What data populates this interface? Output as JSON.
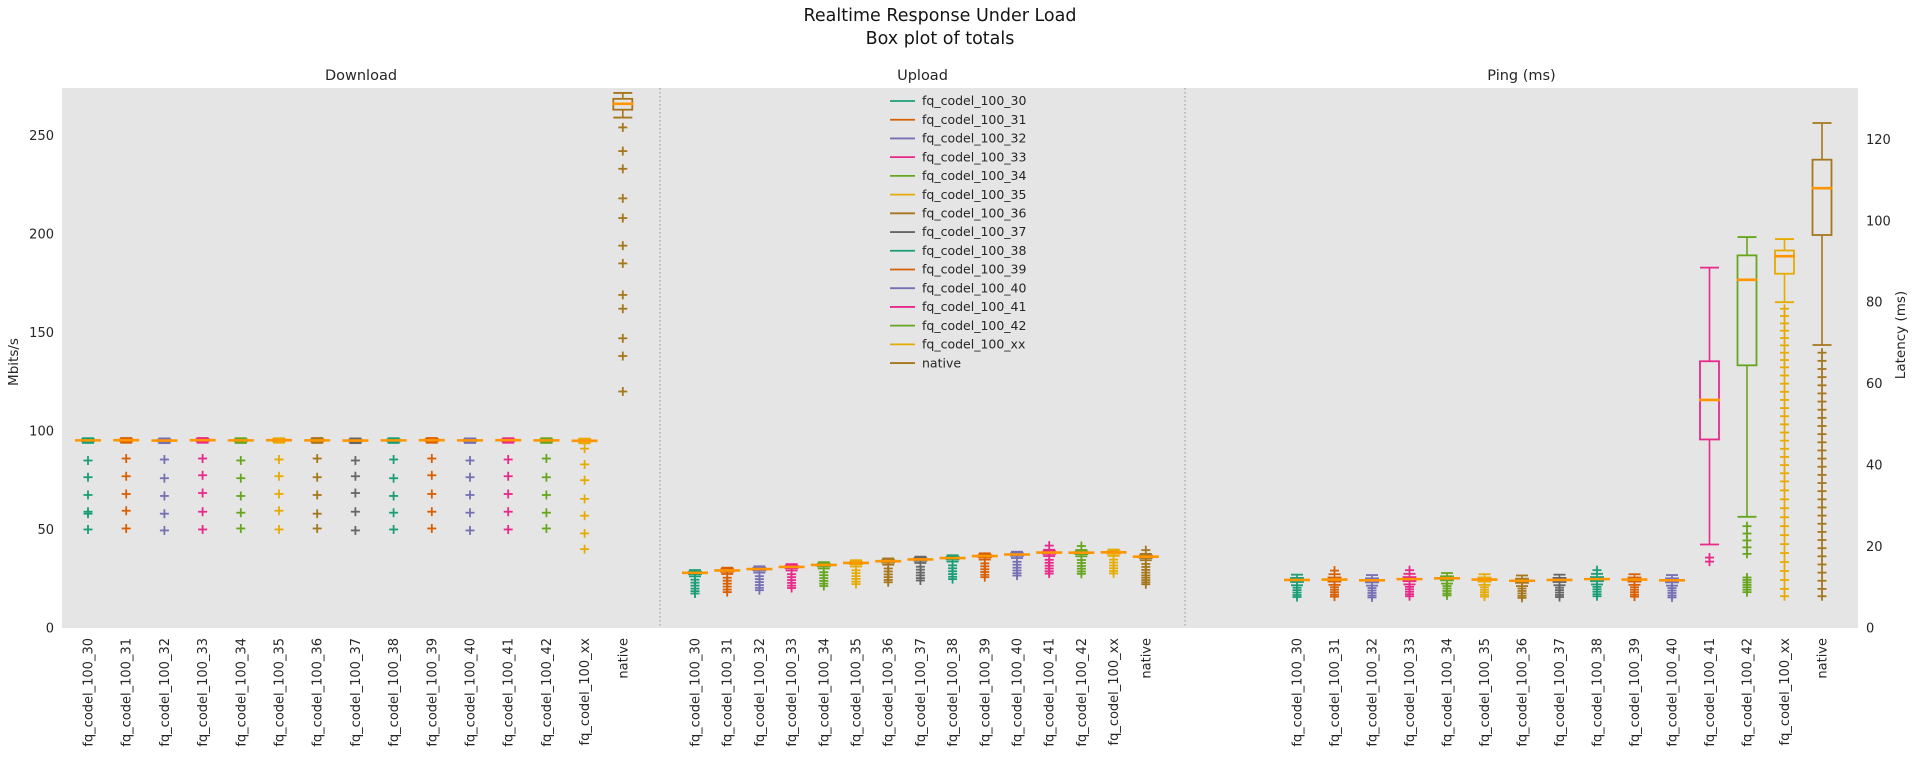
{
  "title": {
    "line1": "Realtime Response Under Load",
    "line2": "Box plot of totals"
  },
  "colors": {
    "figure_bg": "#ffffff",
    "plot_bg": "#e5e5e5",
    "median": "#ff9500",
    "separator": "#a8a8a8",
    "text": "#262626"
  },
  "series": [
    {
      "name": "fq_codel_100_30",
      "color": "#1b9e77"
    },
    {
      "name": "fq_codel_100_31",
      "color": "#d95f02"
    },
    {
      "name": "fq_codel_100_32",
      "color": "#7570b3"
    },
    {
      "name": "fq_codel_100_33",
      "color": "#e7298a"
    },
    {
      "name": "fq_codel_100_34",
      "color": "#66a61e"
    },
    {
      "name": "fq_codel_100_35",
      "color": "#e6ab02"
    },
    {
      "name": "fq_codel_100_36",
      "color": "#a6761d"
    },
    {
      "name": "fq_codel_100_37",
      "color": "#666666"
    },
    {
      "name": "fq_codel_100_38",
      "color": "#1b9e77"
    },
    {
      "name": "fq_codel_100_39",
      "color": "#d95f02"
    },
    {
      "name": "fq_codel_100_40",
      "color": "#7570b3"
    },
    {
      "name": "fq_codel_100_41",
      "color": "#e7298a"
    },
    {
      "name": "fq_codel_100_42",
      "color": "#66a61e"
    },
    {
      "name": "fq_codel_100_xx",
      "color": "#e6ab02"
    },
    {
      "name": "native",
      "color": "#a6761d"
    }
  ],
  "chart_data": {
    "type": "boxplot",
    "legend_position": "top-center-of-upload-panel",
    "grid": false,
    "subplots": [
      {
        "title": "Download",
        "axis": "left",
        "ylabel": "Mbits/s",
        "ylim": [
          0,
          274
        ],
        "yticks": [
          0,
          50,
          100,
          150,
          200,
          250
        ],
        "boxes": [
          {
            "med": 95.2,
            "q1": 94.7,
            "q3": 95.8,
            "whislo": 93.9,
            "whishi": 96.3,
            "fliers": [
              85,
              76.5,
              67.5,
              59,
              58,
              50
            ]
          },
          {
            "med": 95.3,
            "q1": 94.8,
            "q3": 95.8,
            "whislo": 94.0,
            "whishi": 96.4,
            "fliers": [
              86,
              77,
              68,
              59.5,
              50.5
            ]
          },
          {
            "med": 95.1,
            "q1": 94.6,
            "q3": 95.7,
            "whislo": 93.8,
            "whishi": 96.2,
            "fliers": [
              85.5,
              76,
              67,
              58,
              49.5
            ]
          },
          {
            "med": 95.3,
            "q1": 94.8,
            "q3": 95.9,
            "whislo": 94.0,
            "whishi": 96.4,
            "fliers": [
              86,
              77.5,
              68.5,
              59,
              50
            ]
          },
          {
            "med": 95.2,
            "q1": 94.7,
            "q3": 95.7,
            "whislo": 93.9,
            "whishi": 96.3,
            "fliers": [
              85,
              76,
              67,
              58.5,
              50.5
            ]
          },
          {
            "med": 95.3,
            "q1": 94.8,
            "q3": 95.8,
            "whislo": 94.0,
            "whishi": 96.3,
            "fliers": [
              85.5,
              77,
              68,
              59.5,
              50
            ]
          },
          {
            "med": 95.2,
            "q1": 94.7,
            "q3": 95.8,
            "whislo": 93.9,
            "whishi": 96.4,
            "fliers": [
              86,
              76.5,
              67.5,
              58,
              50.5
            ]
          },
          {
            "med": 95.1,
            "q1": 94.6,
            "q3": 95.6,
            "whislo": 93.8,
            "whishi": 96.2,
            "fliers": [
              85,
              77,
              68.5,
              59,
              49.5
            ]
          },
          {
            "med": 95.2,
            "q1": 94.7,
            "q3": 95.7,
            "whislo": 93.9,
            "whishi": 96.3,
            "fliers": [
              85.5,
              76,
              67,
              58.5,
              50
            ]
          },
          {
            "med": 95.3,
            "q1": 94.8,
            "q3": 95.9,
            "whislo": 94.0,
            "whishi": 96.4,
            "fliers": [
              86,
              77.5,
              68,
              59,
              50.5
            ]
          },
          {
            "med": 95.2,
            "q1": 94.7,
            "q3": 95.7,
            "whislo": 93.9,
            "whishi": 96.2,
            "fliers": [
              85,
              76.5,
              67.5,
              58.5,
              49.5
            ]
          },
          {
            "med": 95.3,
            "q1": 94.8,
            "q3": 95.8,
            "whislo": 94.0,
            "whishi": 96.3,
            "fliers": [
              85.5,
              77,
              68,
              59,
              50
            ]
          },
          {
            "med": 95.2,
            "q1": 94.7,
            "q3": 95.7,
            "whislo": 93.9,
            "whishi": 96.3,
            "fliers": [
              86,
              76.5,
              67.5,
              58.5,
              50.5
            ]
          },
          {
            "med": 95.0,
            "q1": 94.5,
            "q3": 95.6,
            "whislo": 93.7,
            "whishi": 96.1,
            "fliers": [
              91,
              83,
              75,
              65.5,
              57,
              48,
              40
            ]
          },
          {
            "med": 266,
            "q1": 263,
            "q3": 268.5,
            "whislo": 259,
            "whishi": 271.5,
            "fliers": [
              254,
              242,
              233,
              218,
              208,
              194,
              185,
              169,
              162,
              147,
              138,
              120
            ]
          }
        ]
      },
      {
        "title": "Upload",
        "axis": "left",
        "ylabel": "Mbits/s",
        "ylim": [
          0,
          274
        ],
        "yticks": [
          0,
          50,
          100,
          150,
          200,
          250
        ],
        "boxes": [
          {
            "med": 28.0,
            "q1": 27.3,
            "q3": 28.6,
            "whislo": 26.2,
            "whishi": 29.4,
            "fliers": [
              24.5,
              23,
              21.5,
              20,
              18.7,
              17.5
            ]
          },
          {
            "med": 29.2,
            "q1": 28.5,
            "q3": 29.8,
            "whislo": 27.4,
            "whishi": 30.6,
            "fliers": [
              25.5,
              24,
              22.5,
              21,
              19.5,
              18.2
            ]
          },
          {
            "med": 29.9,
            "q1": 29.2,
            "q3": 30.5,
            "whislo": 28.1,
            "whishi": 31.3,
            "fliers": [
              26.3,
              24.8,
              23.3,
              21.8,
              20.4,
              19.2
            ]
          },
          {
            "med": 31.0,
            "q1": 30.3,
            "q3": 31.6,
            "whislo": 29.2,
            "whishi": 32.4,
            "fliers": [
              27.3,
              25.8,
              24.3,
              22.9,
              21.5,
              20.3
            ]
          },
          {
            "med": 32.0,
            "q1": 31.3,
            "q3": 32.6,
            "whislo": 30.2,
            "whishi": 33.4,
            "fliers": [
              28.3,
              26.8,
              25.3,
              23.9,
              22.5,
              21.3
            ]
          },
          {
            "med": 33.0,
            "q1": 32.3,
            "q3": 33.6,
            "whislo": 31.2,
            "whishi": 34.4,
            "fliers": [
              29.3,
              27.8,
              26.3,
              24.9,
              23.5,
              22.3
            ]
          },
          {
            "med": 33.9,
            "q1": 33.2,
            "q3": 34.5,
            "whislo": 32.1,
            "whishi": 35.3,
            "fliers": [
              30.2,
              28.7,
              27.2,
              25.8,
              24.4,
              23.2
            ]
          },
          {
            "med": 34.8,
            "q1": 34.1,
            "q3": 35.4,
            "whislo": 33.0,
            "whishi": 36.2,
            "fliers": [
              31.1,
              29.6,
              28.1,
              26.7,
              25.3,
              24.1
            ]
          },
          {
            "med": 35.5,
            "q1": 34.8,
            "q3": 36.1,
            "whislo": 33.7,
            "whishi": 36.9,
            "fliers": [
              31.8,
              30.3,
              28.8,
              27.4,
              26,
              24.8
            ]
          },
          {
            "med": 36.5,
            "q1": 35.8,
            "q3": 37.1,
            "whislo": 34.7,
            "whishi": 37.9,
            "fliers": [
              32.8,
              31.3,
              29.8,
              28.4,
              27,
              25.8
            ]
          },
          {
            "med": 37.3,
            "q1": 36.6,
            "q3": 37.9,
            "whislo": 35.5,
            "whishi": 38.7,
            "fliers": [
              33.6,
              32.1,
              30.6,
              29.2,
              27.8,
              26.6
            ]
          },
          {
            "med": 38.3,
            "q1": 37.6,
            "q3": 38.9,
            "whislo": 36.5,
            "whishi": 39.7,
            "fliers": [
              41.8,
              34.6,
              33.1,
              31.6,
              30.2,
              28.8,
              27.6
            ]
          },
          {
            "med": 38.2,
            "q1": 37.5,
            "q3": 38.8,
            "whislo": 36.4,
            "whishi": 39.6,
            "fliers": [
              41.6,
              34.5,
              33,
              31.5,
              30.1,
              28.7,
              27.5
            ]
          },
          {
            "med": 38.4,
            "q1": 37.7,
            "q3": 39.0,
            "whislo": 36.6,
            "whishi": 39.8,
            "fliers": [
              34.7,
              33.2,
              31.7,
              30.3,
              28.9,
              27.7
            ]
          },
          {
            "med": 36.2,
            "q1": 35.5,
            "q3": 36.8,
            "whislo": 34.4,
            "whishi": 37.6,
            "fliers": [
              39.5,
              32.5,
              31,
              29.5,
              28.1,
              26.7,
              25.5,
              24.3,
              23.2,
              22.2
            ]
          }
        ]
      },
      {
        "title": "Ping (ms)",
        "axis": "right",
        "ylabel": "Latency (ms)",
        "ylim": [
          0,
          132.6
        ],
        "yticks": [
          0,
          20,
          40,
          60,
          80,
          100,
          120
        ],
        "boxes": [
          {
            "med": 11.8,
            "q1": 11.3,
            "q3": 12.3,
            "whislo": 10.5,
            "whishi": 13.1,
            "fliers": [
              9.9,
              9.3,
              8.7,
              8.1,
              7.6
            ]
          },
          {
            "med": 11.9,
            "q1": 11.4,
            "q3": 12.4,
            "whislo": 10.6,
            "whishi": 13.2,
            "fliers": [
              14.1,
              10,
              9.4,
              8.8,
              8.2,
              7.7
            ]
          },
          {
            "med": 11.7,
            "q1": 11.2,
            "q3": 12.2,
            "whislo": 10.4,
            "whishi": 13.0,
            "fliers": [
              9.8,
              9.2,
              8.6,
              8,
              7.5
            ]
          },
          {
            "med": 12.0,
            "q1": 11.5,
            "q3": 12.5,
            "whislo": 10.7,
            "whishi": 13.3,
            "fliers": [
              14.2,
              10.1,
              9.5,
              8.9,
              8.3,
              7.8
            ]
          },
          {
            "med": 12.2,
            "q1": 11.7,
            "q3": 12.7,
            "whislo": 10.9,
            "whishi": 13.5,
            "fliers": [
              10.3,
              9.7,
              9.1,
              8.5,
              8
            ]
          },
          {
            "med": 11.9,
            "q1": 11.4,
            "q3": 12.4,
            "whislo": 10.6,
            "whishi": 13.2,
            "fliers": [
              10,
              9.4,
              8.8,
              8.2,
              7.7
            ]
          },
          {
            "med": 11.6,
            "q1": 11.1,
            "q3": 12.1,
            "whislo": 10.3,
            "whishi": 12.9,
            "fliers": [
              9.7,
              9.1,
              8.5,
              7.9,
              7.4
            ]
          },
          {
            "med": 11.8,
            "q1": 11.3,
            "q3": 12.3,
            "whislo": 10.5,
            "whishi": 13.1,
            "fliers": [
              9.9,
              9.3,
              8.7,
              8.1,
              7.6
            ]
          },
          {
            "med": 12.0,
            "q1": 11.5,
            "q3": 12.5,
            "whislo": 10.7,
            "whishi": 13.3,
            "fliers": [
              14.2,
              10.1,
              9.5,
              8.9,
              8.3,
              7.8
            ]
          },
          {
            "med": 11.9,
            "q1": 11.4,
            "q3": 12.4,
            "whislo": 10.6,
            "whishi": 13.2,
            "fliers": [
              10,
              9.4,
              8.8,
              8.2,
              7.7
            ]
          },
          {
            "med": 11.7,
            "q1": 11.2,
            "q3": 12.2,
            "whislo": 10.4,
            "whishi": 13.0,
            "fliers": [
              9.8,
              9.2,
              8.6,
              8,
              7.5
            ]
          },
          {
            "med": 56.0,
            "q1": 46.3,
            "q3": 65.5,
            "whislo": 20.5,
            "whishi": 88.5,
            "fliers": [
              17.3,
              16.3
            ]
          },
          {
            "med": 85.5,
            "q1": 64.5,
            "q3": 91.5,
            "whislo": 27.3,
            "whishi": 96.0,
            "fliers": [
              25,
              23.2,
              21.5,
              19.8,
              18.2,
              12.4,
              11.8,
              11.2,
              10.6,
              10,
              9.4,
              8.8
            ]
          },
          {
            "med": 91.3,
            "q1": 87.0,
            "q3": 92.7,
            "whislo": 80.0,
            "whishi": 95.5,
            "fliers": [
              78.4,
              76.6,
              74.8,
              73,
              71.2,
              69.4,
              67.6,
              65.8,
              64,
              62,
              60,
              58,
              56,
              54,
              52,
              50,
              48,
              46,
              44,
              42,
              40,
              38,
              36,
              33.8,
              31.6,
              29.4,
              27.2,
              25,
              22.8,
              20.6,
              18.4,
              16.2,
              14,
              11.8,
              9.6,
              7.8
            ]
          },
          {
            "med": 108.0,
            "q1": 96.5,
            "q3": 115.0,
            "whislo": 69.5,
            "whishi": 124.0,
            "fliers": [
              67.6,
              65.6,
              63.6,
              61.6,
              59.6,
              57.6,
              55.6,
              53.6,
              51.6,
              49.6,
              47.6,
              45.6,
              43.6,
              41.6,
              39.6,
              37.6,
              35.6,
              33.6,
              31.6,
              29.6,
              27.6,
              25.6,
              23.6,
              21.6,
              19.6,
              17.6,
              15.6,
              13.6,
              11.6,
              9.6,
              7.8
            ]
          }
        ]
      }
    ]
  }
}
